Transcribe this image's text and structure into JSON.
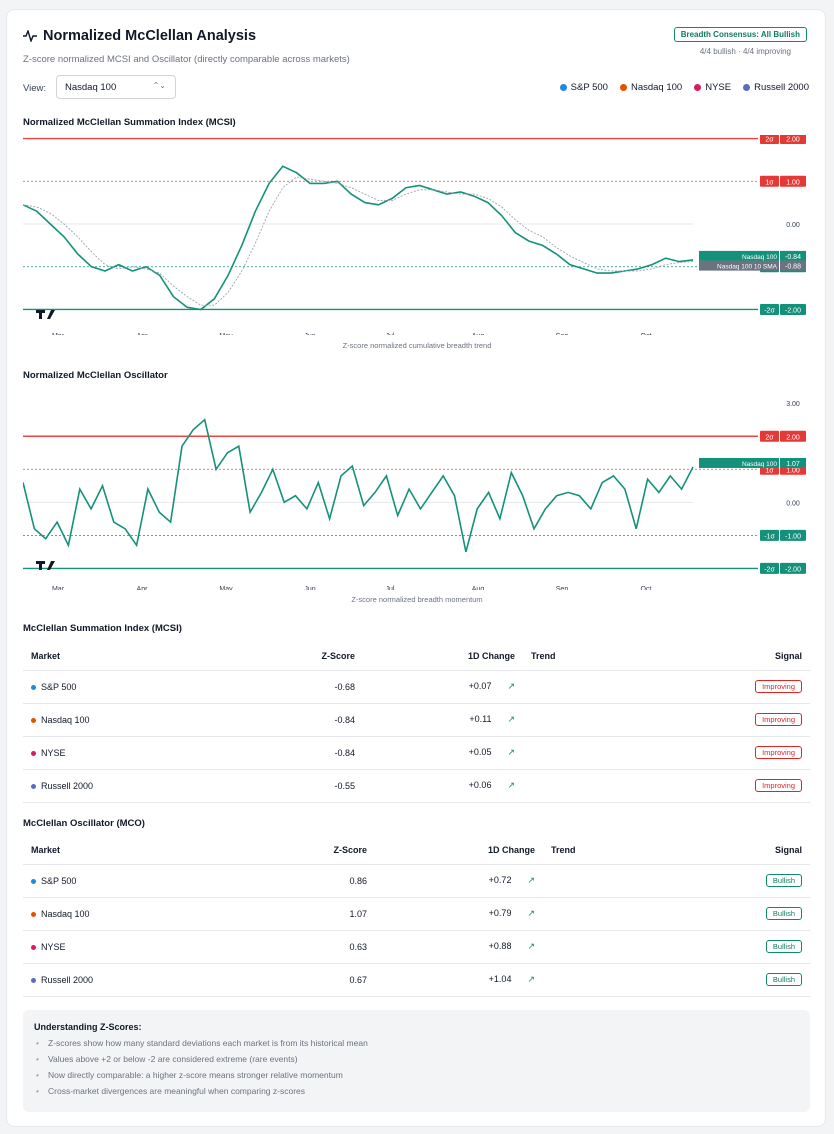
{
  "header": {
    "title": "Normalized McClellan Analysis",
    "subtitle": "Z-score normalized MCSI and Oscillator (directly comparable across markets)",
    "consensus_badge": "Breadth Consensus: All Bullish",
    "consensus_sub": "4/4 bullish · 4/4 improving"
  },
  "view": {
    "label": "View:",
    "selected": "Nasdaq 100"
  },
  "legend": [
    {
      "label": "S&P 500",
      "color": "#1e88e5"
    },
    {
      "label": "Nasdaq 100",
      "color": "#e65100"
    },
    {
      "label": "NYSE",
      "color": "#d81b60"
    },
    {
      "label": "Russell 2000",
      "color": "#5c6bc0"
    }
  ],
  "chart_mcsi_title": "Normalized McClellan Summation Index (MCSI)",
  "chart_mcsi_caption": "Z-score normalized cumulative breadth trend",
  "chart_mco_title": "Normalized McClellan Oscillator",
  "chart_mco_caption": "Z-score normalized breadth momentum",
  "chart_data": [
    {
      "type": "line",
      "title": "Normalized McClellan Summation Index (MCSI)",
      "months": [
        "Mar",
        "Apr",
        "May",
        "Jun",
        "Jul",
        "Aug",
        "Sep",
        "Oct"
      ],
      "ylim": [
        -2.2,
        2.2
      ],
      "y_labels": [
        "2.00",
        "1.00",
        "0.00",
        "-1.00",
        "-2.00"
      ],
      "sigma_labels": [
        "2σ",
        "1σ",
        "-1σ",
        "-2σ"
      ],
      "series": [
        {
          "name": "Nasdaq 100",
          "color": "#14917a",
          "last_label": "-0.84",
          "values": [
            0.45,
            0.3,
            0.0,
            -0.3,
            -0.7,
            -1.0,
            -1.1,
            -0.95,
            -1.1,
            -1.0,
            -1.2,
            -1.7,
            -1.95,
            -2.0,
            -1.75,
            -1.2,
            -0.5,
            0.3,
            0.95,
            1.35,
            1.2,
            0.95,
            0.95,
            1.0,
            0.7,
            0.5,
            0.45,
            0.6,
            0.85,
            0.9,
            0.8,
            0.7,
            0.75,
            0.65,
            0.5,
            0.2,
            -0.2,
            -0.4,
            -0.5,
            -0.7,
            -0.95,
            -1.05,
            -1.15,
            -1.15,
            -1.1,
            -1.05,
            -0.95,
            -0.8,
            -0.88,
            -0.84
          ]
        },
        {
          "name": "Nasdaq 100 10 SMA",
          "color": "#9ca3af",
          "last_label": "-0.88",
          "values": [
            0.45,
            0.4,
            0.25,
            0.0,
            -0.3,
            -0.65,
            -0.95,
            -1.05,
            -1.0,
            -1.05,
            -1.15,
            -1.45,
            -1.7,
            -1.9,
            -1.9,
            -1.6,
            -1.1,
            -0.45,
            0.3,
            0.85,
            1.1,
            1.05,
            1.0,
            0.95,
            0.85,
            0.7,
            0.55,
            0.55,
            0.7,
            0.8,
            0.8,
            0.75,
            0.7,
            0.7,
            0.6,
            0.4,
            0.1,
            -0.15,
            -0.3,
            -0.55,
            -0.75,
            -0.9,
            -1.05,
            -1.1,
            -1.1,
            -1.1,
            -1.05,
            -0.95,
            -0.9,
            -0.88
          ]
        }
      ]
    },
    {
      "type": "line",
      "title": "Normalized McClellan Oscillator",
      "months": [
        "Mar",
        "Apr",
        "May",
        "Jun",
        "Jul",
        "Aug",
        "Sep",
        "Oct"
      ],
      "ylim": [
        -2.2,
        3.4
      ],
      "y_labels": [
        "3.00",
        "2.00",
        "1.00",
        "0.00",
        "-1.00",
        "-2.00"
      ],
      "sigma_labels": [
        "2σ",
        "1σ",
        "-1σ",
        "-2σ"
      ],
      "series": [
        {
          "name": "Nasdaq 100",
          "color": "#14917a",
          "last_label": "1.07",
          "values": [
            0.6,
            -0.8,
            -1.1,
            -0.6,
            -1.3,
            0.4,
            -0.2,
            0.5,
            -0.6,
            -0.8,
            -1.3,
            0.4,
            -0.3,
            -0.6,
            1.7,
            2.2,
            2.5,
            1.0,
            1.5,
            1.7,
            -0.3,
            0.3,
            1.0,
            0.0,
            0.2,
            -0.2,
            0.6,
            -0.5,
            0.8,
            1.1,
            -0.1,
            0.3,
            0.8,
            -0.4,
            0.4,
            -0.2,
            0.3,
            0.8,
            0.2,
            -1.5,
            -0.2,
            0.3,
            -0.5,
            0.9,
            0.2,
            -0.8,
            -0.2,
            0.2,
            0.3,
            0.2,
            -0.2,
            0.6,
            0.8,
            0.4,
            -0.8,
            0.7,
            0.3,
            0.8,
            0.4,
            1.07
          ]
        }
      ]
    }
  ],
  "mcsi_table": {
    "title": "McClellan Summation Index (MCSI)",
    "headers": [
      "Market",
      "Z-Score",
      "1D Change",
      "Trend",
      "Signal"
    ],
    "rows": [
      {
        "market": "S&P 500",
        "color": "#1e88e5",
        "z": "-0.68",
        "change": "+0.07",
        "signal": "Improving"
      },
      {
        "market": "Nasdaq 100",
        "color": "#e65100",
        "z": "-0.84",
        "change": "+0.11",
        "signal": "Improving"
      },
      {
        "market": "NYSE",
        "color": "#d81b60",
        "z": "-0.84",
        "change": "+0.05",
        "signal": "Improving"
      },
      {
        "market": "Russell 2000",
        "color": "#5c6bc0",
        "z": "-0.55",
        "change": "+0.06",
        "signal": "Improving"
      }
    ]
  },
  "mco_table": {
    "title": "McClellan Oscillator (MCO)",
    "headers": [
      "Market",
      "Z-Score",
      "1D Change",
      "Trend",
      "Signal"
    ],
    "rows": [
      {
        "market": "S&P 500",
        "color": "#1e88e5",
        "z": "0.86",
        "change": "+0.72",
        "signal": "Bullish"
      },
      {
        "market": "Nasdaq 100",
        "color": "#e65100",
        "z": "1.07",
        "change": "+0.79",
        "signal": "Bullish"
      },
      {
        "market": "NYSE",
        "color": "#d81b60",
        "z": "0.63",
        "change": "+0.88",
        "signal": "Bullish"
      },
      {
        "market": "Russell 2000",
        "color": "#5c6bc0",
        "z": "0.67",
        "change": "+1.04",
        "signal": "Bullish"
      }
    ]
  },
  "info": {
    "title": "Understanding Z-Scores:",
    "items": [
      "Z-scores show how many standard deviations each market is from its historical mean",
      "Values above +2 or below -2 are considered extreme (rare events)",
      "Now directly comparable: a higher z-score means stronger relative momentum",
      "Cross-market divergences are meaningful when comparing z-scores"
    ]
  }
}
